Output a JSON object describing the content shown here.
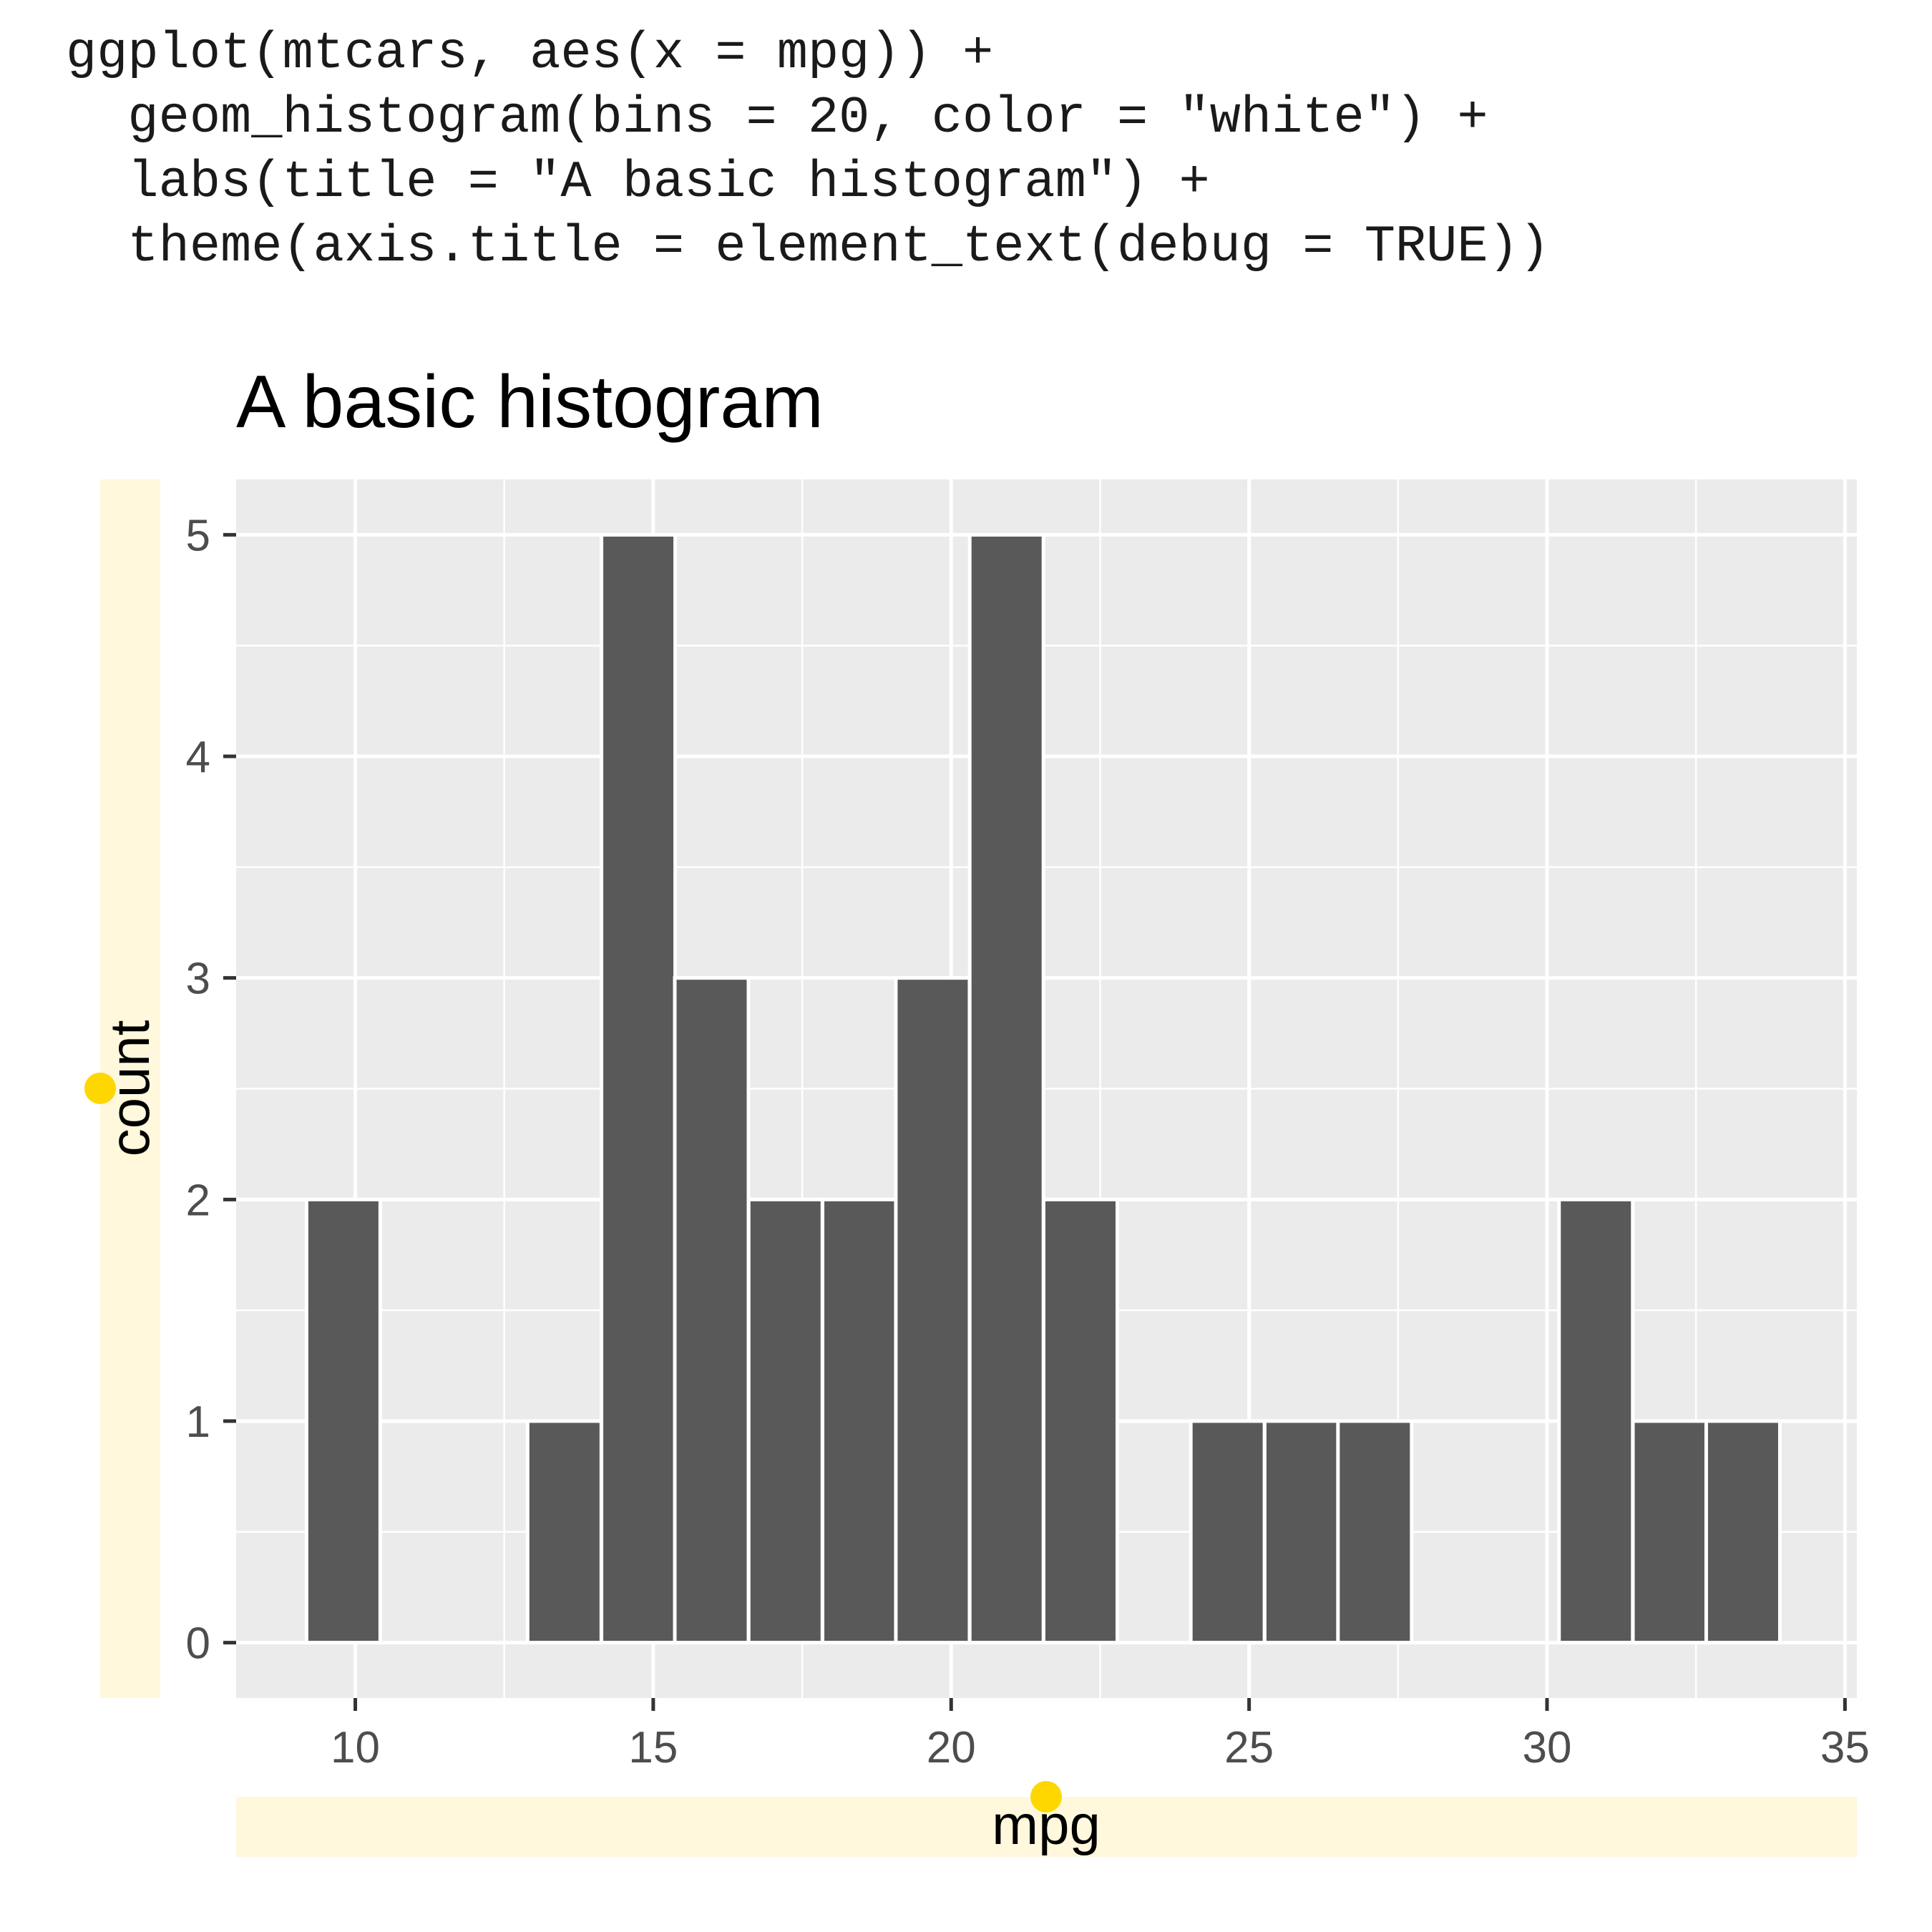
{
  "code": {
    "lines": [
      "ggplot(mtcars, aes(x = mpg)) +",
      "  geom_histogram(bins = 20, color = \"white\") +",
      "  labs(title = \"A basic histogram\") +",
      "  theme(axis.title = element_text(debug = TRUE))"
    ]
  },
  "chart_data": {
    "type": "bar",
    "title": "A basic histogram",
    "xlabel": "mpg",
    "ylabel": "count",
    "xlim": [
      8.0,
      35.2
    ],
    "ylim": [
      -0.25,
      5.25
    ],
    "xticks": [
      10,
      15,
      20,
      25,
      30,
      35
    ],
    "yticks": [
      0,
      1,
      2,
      3,
      4,
      5
    ],
    "bin_width": 1.2368,
    "bin_centers": [
      9.8,
      11.04,
      12.27,
      13.51,
      14.75,
      15.98,
      17.22,
      18.46,
      19.69,
      20.93,
      22.17,
      23.4,
      24.64,
      25.88,
      27.11,
      28.35,
      29.59,
      30.82,
      32.06,
      33.29
    ],
    "counts": [
      2,
      0,
      0,
      1,
      5,
      3,
      2,
      2,
      3,
      5,
      2,
      0,
      1,
      1,
      1,
      0,
      0,
      2,
      1,
      1
    ],
    "colors": {
      "bar_fill": "#595959",
      "bar_outline": "#ffffff",
      "panel_bg": "#ebebeb",
      "grid": "#ffffff",
      "debug_box": "#fff8dc",
      "debug_point": "#ffd700"
    },
    "grid": true
  }
}
